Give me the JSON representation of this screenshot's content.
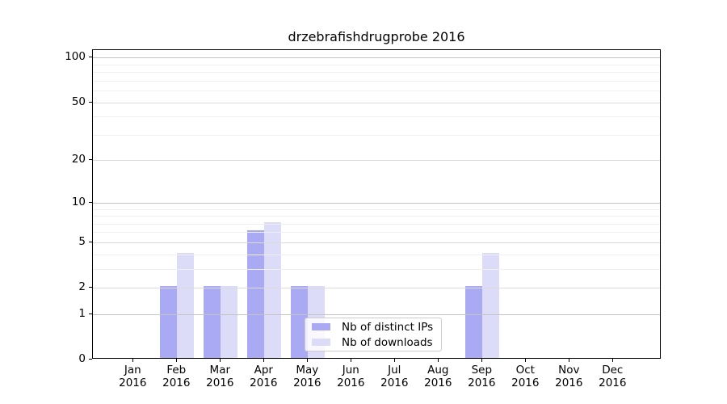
{
  "chart_data": {
    "type": "bar",
    "title": "drzebrafishdrugprobe 2016",
    "xlabel": "",
    "ylabel": "",
    "y_scale": "log10(1+y)",
    "y_max": 112,
    "y_ticks": [
      0,
      1,
      2,
      5,
      10,
      20,
      50,
      100
    ],
    "y_minor_gridlines": [
      3,
      4,
      6,
      7,
      8,
      9,
      30,
      40,
      60,
      70,
      80,
      90
    ],
    "grid": "on",
    "months": [
      "Jan",
      "Feb",
      "Mar",
      "Apr",
      "May",
      "Jun",
      "Jul",
      "Aug",
      "Sep",
      "Oct",
      "Nov",
      "Dec"
    ],
    "year": "2016",
    "series": [
      {
        "name": "Nb of distinct IPs",
        "color": "#a9a9f4",
        "values": [
          0,
          2,
          2,
          6,
          2,
          0,
          0,
          0,
          2,
          0,
          0,
          0
        ]
      },
      {
        "name": "Nb of downloads",
        "color": "#dcdcf8",
        "values": [
          0,
          4,
          2,
          7,
          2,
          0,
          0,
          0,
          4,
          0,
          0,
          0
        ]
      }
    ],
    "legend_position": "bottom-center"
  }
}
